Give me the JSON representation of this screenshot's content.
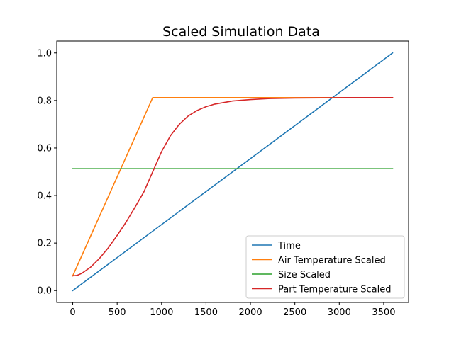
{
  "chart_data": {
    "type": "line",
    "title": "Scaled Simulation Data",
    "xlabel": "",
    "ylabel": "",
    "xlim": [
      -180,
      3780
    ],
    "ylim": [
      -0.05,
      1.05
    ],
    "xticks": [
      0,
      500,
      1000,
      1500,
      2000,
      2500,
      3000,
      3500
    ],
    "xtick_labels": [
      "0",
      "500",
      "1000",
      "1500",
      "2000",
      "2500",
      "3000",
      "3500"
    ],
    "yticks": [
      0.0,
      0.2,
      0.4,
      0.6,
      0.8,
      1.0
    ],
    "ytick_labels": [
      "0.0",
      "0.2",
      "0.4",
      "0.6",
      "0.8",
      "1.0"
    ],
    "grid": false,
    "legend_position": "lower-right",
    "series": [
      {
        "name": "Time",
        "color": "#1f77b4",
        "x": [
          0,
          3600
        ],
        "y": [
          0.0,
          1.0
        ]
      },
      {
        "name": "Air Temperature Scaled",
        "color": "#ff7f0e",
        "x": [
          0,
          900,
          3600
        ],
        "y": [
          0.062,
          0.812,
          0.812
        ]
      },
      {
        "name": "Size Scaled",
        "color": "#2ca02c",
        "x": [
          0,
          3600
        ],
        "y": [
          0.513,
          0.513
        ]
      },
      {
        "name": "Part Temperature Scaled",
        "color": "#d62728",
        "x": [
          0,
          50,
          100,
          200,
          300,
          400,
          500,
          600,
          700,
          800,
          900,
          1000,
          1100,
          1200,
          1300,
          1400,
          1500,
          1600,
          1800,
          2000,
          2200,
          2500,
          2800,
          3100,
          3600
        ],
        "y": [
          0.062,
          0.064,
          0.072,
          0.098,
          0.135,
          0.18,
          0.232,
          0.288,
          0.35,
          0.415,
          0.5,
          0.585,
          0.652,
          0.7,
          0.735,
          0.758,
          0.774,
          0.785,
          0.798,
          0.804,
          0.808,
          0.81,
          0.811,
          0.812,
          0.812
        ]
      }
    ]
  }
}
